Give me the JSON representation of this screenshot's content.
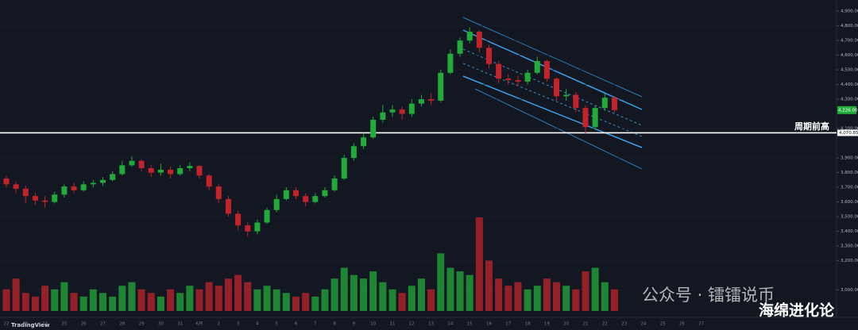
{
  "chart_data": {
    "type": "candlestick",
    "categories": [
      "22",
      null,
      "23",
      null,
      "24",
      null,
      "25",
      null,
      "26",
      null,
      "27",
      null,
      "28",
      null,
      "29",
      null,
      "30",
      null,
      "31",
      null,
      "6月",
      null,
      "2",
      null,
      "3",
      null,
      "4",
      null,
      "5",
      null,
      "6",
      null,
      "7",
      null,
      "8",
      null,
      "9",
      null,
      "10",
      null,
      "11",
      null,
      "12",
      null,
      "13",
      null,
      "14",
      null,
      "15",
      null,
      "16",
      null,
      "17",
      null,
      "18",
      null,
      "19",
      null,
      "20",
      null,
      "21",
      null,
      "22",
      null
    ],
    "future_categories": [
      "23",
      "24",
      "25",
      "26",
      "27"
    ],
    "open": [
      3760,
      3720,
      3690,
      3640,
      3610,
      3600,
      3650,
      3705,
      3680,
      3720,
      3730,
      3750,
      3790,
      3850,
      3880,
      3830,
      3800,
      3820,
      3790,
      3830,
      3845,
      3780,
      3705,
      3620,
      3520,
      3440,
      3400,
      3460,
      3545,
      3620,
      3680,
      3640,
      3600,
      3640,
      3680,
      3760,
      3900,
      3980,
      4040,
      4160,
      4210,
      4230,
      4200,
      4270,
      4300,
      4290,
      4480,
      4610,
      4700,
      4760,
      4650,
      4540,
      4440,
      4430,
      4420,
      4480,
      4560,
      4440,
      4320,
      4330,
      4240,
      4110,
      4240,
      4310
    ],
    "high": [
      3780,
      3740,
      3710,
      3660,
      3640,
      3670,
      3720,
      3730,
      3740,
      3750,
      3770,
      3810,
      3880,
      3910,
      3890,
      3850,
      3860,
      3840,
      3850,
      3870,
      3850,
      3790,
      3720,
      3640,
      3540,
      3460,
      3480,
      3560,
      3650,
      3700,
      3700,
      3660,
      3660,
      3700,
      3780,
      3920,
      4000,
      4070,
      4180,
      4260,
      4260,
      4250,
      4300,
      4330,
      4340,
      4500,
      4640,
      4720,
      4790,
      4770,
      4670,
      4560,
      4470,
      4460,
      4500,
      4590,
      4570,
      4450,
      4370,
      4350,
      4260,
      4260,
      4340,
      4320
    ],
    "low": [
      3700,
      3660,
      3590,
      3580,
      3560,
      3590,
      3630,
      3660,
      3670,
      3700,
      3710,
      3740,
      3780,
      3840,
      3810,
      3770,
      3780,
      3760,
      3780,
      3810,
      3760,
      3680,
      3590,
      3500,
      3410,
      3365,
      3380,
      3450,
      3530,
      3610,
      3620,
      3570,
      3590,
      3630,
      3670,
      3750,
      3880,
      3960,
      4030,
      4140,
      4180,
      4160,
      4180,
      4250,
      4260,
      4280,
      4470,
      4590,
      4680,
      4620,
      4510,
      4410,
      4400,
      4390,
      4400,
      4470,
      4420,
      4290,
      4290,
      4210,
      4068,
      4090,
      4220,
      4210
    ],
    "close": [
      3720,
      3690,
      3640,
      3610,
      3600,
      3650,
      3705,
      3680,
      3720,
      3730,
      3750,
      3790,
      3850,
      3880,
      3830,
      3800,
      3820,
      3790,
      3830,
      3845,
      3780,
      3705,
      3620,
      3520,
      3440,
      3400,
      3460,
      3545,
      3620,
      3680,
      3640,
      3600,
      3640,
      3680,
      3760,
      3900,
      3980,
      4040,
      4160,
      4210,
      4230,
      4200,
      4270,
      4300,
      4290,
      4480,
      4610,
      4700,
      4760,
      4650,
      4540,
      4440,
      4430,
      4420,
      4480,
      4560,
      4440,
      4320,
      4330,
      4240,
      4110,
      4240,
      4310,
      4226
    ],
    "volume": [
      30,
      45,
      25,
      20,
      35,
      30,
      40,
      25,
      20,
      30,
      25,
      20,
      35,
      40,
      30,
      25,
      20,
      30,
      25,
      35,
      30,
      40,
      35,
      45,
      50,
      40,
      30,
      35,
      30,
      25,
      20,
      25,
      20,
      30,
      45,
      60,
      50,
      45,
      55,
      40,
      30,
      25,
      35,
      45,
      30,
      80,
      60,
      55,
      50,
      130,
      70,
      45,
      35,
      40,
      30,
      35,
      45,
      40,
      35,
      30,
      55,
      60,
      40,
      30
    ],
    "up_color": "#22ab3a",
    "down_color": "#c3242b",
    "ylim": [
      2814,
      4976
    ],
    "yticks": [
      {
        "value": 4900,
        "label": "4,900.00"
      },
      {
        "value": 4800,
        "label": "4,800.00"
      },
      {
        "value": 4700,
        "label": "4,700.00"
      },
      {
        "value": 4600,
        "label": "4,600.00"
      },
      {
        "value": 4500,
        "label": "4,500.00"
      },
      {
        "value": 4400,
        "label": "4,400.00"
      },
      {
        "value": 4300,
        "label": "4,300.00"
      },
      {
        "value": 4100,
        "label": "4,100.00"
      },
      {
        "value": 3900,
        "label": "3,900.00"
      },
      {
        "value": 3800,
        "label": "3,800.00"
      },
      {
        "value": 3700,
        "label": "3,700.00"
      },
      {
        "value": 3600,
        "label": "3,600.00"
      },
      {
        "value": 3500,
        "label": "3,500.00"
      },
      {
        "value": 3400,
        "label": "3,400.00"
      },
      {
        "value": 3300,
        "label": "3,300.00"
      },
      {
        "value": 3200,
        "label": "3,200.00"
      },
      {
        "value": 3000,
        "label": "3,000.00"
      }
    ],
    "grid": true,
    "hline": {
      "value": 4070.85,
      "label": "4,070.85",
      "name": "周期前高"
    },
    "last_price": {
      "value": 4226,
      "label": "4,226.00"
    },
    "watermark": "公众号 · 镭镭说币",
    "author": "海绵进化论",
    "brand": "TradingView"
  }
}
